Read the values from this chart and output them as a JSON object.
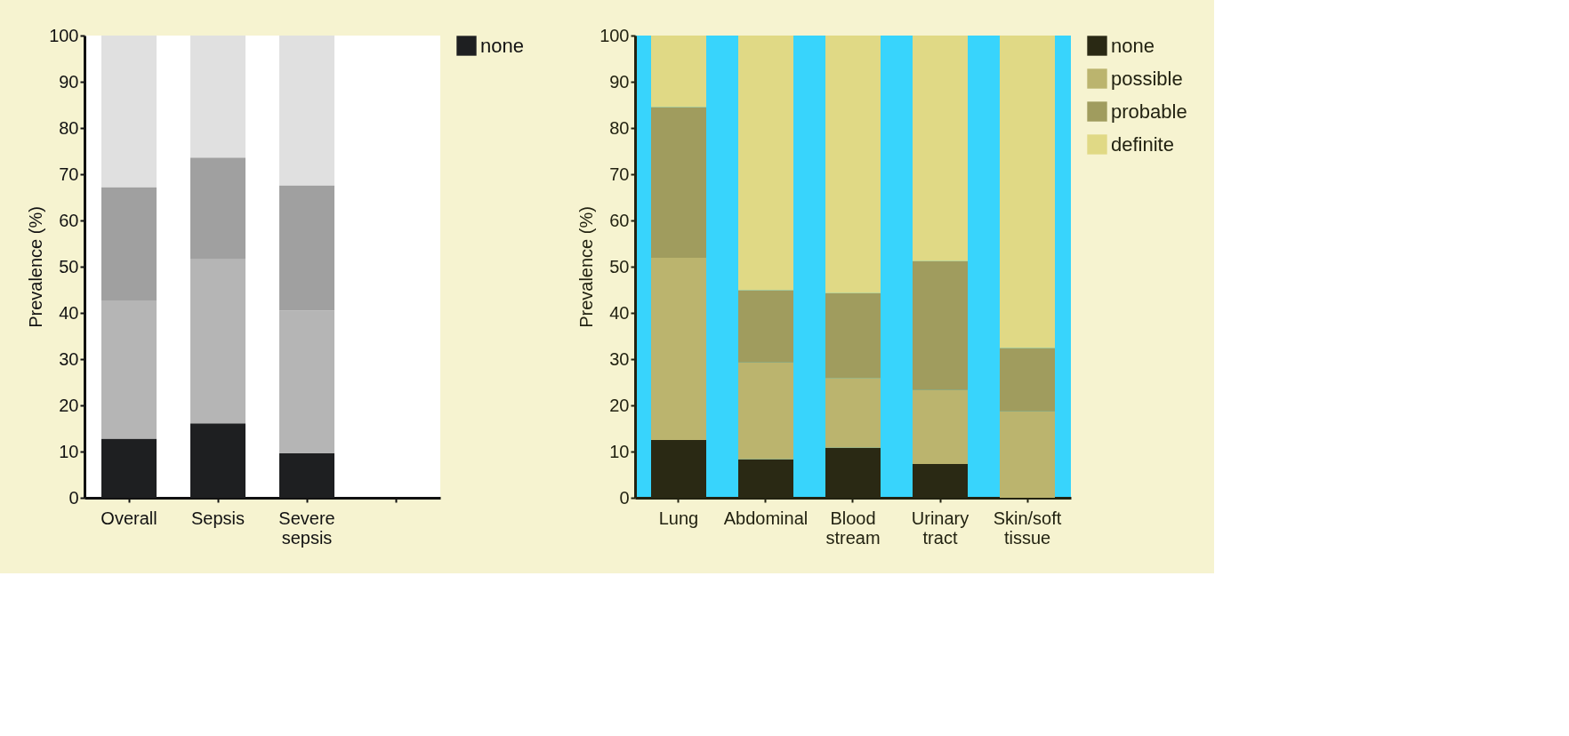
{
  "chart_data": [
    {
      "type": "bar",
      "stacked": true,
      "categories": [
        "Overall",
        "Sepsis",
        "Severe sepsis",
        null
      ],
      "ylabel": "Prevalence (%)",
      "ylim": [
        0,
        100
      ],
      "yticks": [
        0,
        10,
        20,
        30,
        40,
        50,
        60,
        70,
        80,
        90,
        100
      ],
      "legend": "top right",
      "grid": false,
      "series": [
        {
          "name": "none",
          "color": "#1e1f21",
          "values": [
            12.8,
            16.1,
            9.6,
            null
          ]
        },
        {
          "color": "#b5b5b5",
          "values": [
            29.9,
            35.5,
            30.9,
            null
          ]
        },
        {
          "color": "#a0a0a0",
          "values": [
            24.5,
            22.0,
            27.1,
            null
          ]
        },
        {
          "color": "#e0e0e0",
          "values": [
            32.8,
            26.4,
            32.4,
            null
          ]
        }
      ]
    },
    {
      "type": "bar",
      "stacked": true,
      "categories": [
        "Lung",
        "Abdominal",
        "Blood stream",
        "Urinary tract",
        "Skin/soft tissue"
      ],
      "ylabel": "Prevalence (%)",
      "ylim": [
        0,
        100
      ],
      "yticks": [
        0,
        10,
        20,
        30,
        40,
        50,
        60,
        70,
        80,
        90,
        100
      ],
      "legend": "top right",
      "grid": false,
      "series": [
        {
          "name": "none",
          "color": "#2a2914",
          "values": [
            12.5,
            8.3,
            10.8,
            7.3,
            0
          ]
        },
        {
          "name": "possible",
          "color": "#bbb46e",
          "values": [
            39.4,
            21.0,
            15.1,
            16.0,
            18.7
          ]
        },
        {
          "name": "probable",
          "color": "#a09c5e",
          "values": [
            32.6,
            15.6,
            18.4,
            27.9,
            13.7
          ]
        },
        {
          "name": "definite",
          "color": "#e0d985",
          "values": [
            15.5,
            55.1,
            55.7,
            48.8,
            67.6
          ]
        }
      ]
    }
  ]
}
